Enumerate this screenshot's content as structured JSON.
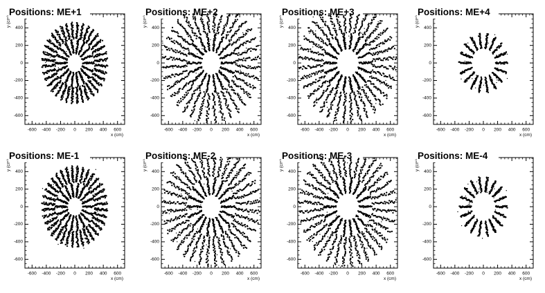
{
  "chart_data": [
    {
      "type": "scatter",
      "title": "Positions: ME+1",
      "xlabel": "x (cm)",
      "ylabel": "y (cm)",
      "xlim": [
        -700,
        700
      ],
      "ylim": [
        -700,
        560
      ],
      "xticks": [
        -600,
        -400,
        -200,
        0,
        200,
        400,
        600
      ],
      "yticks": [
        -600,
        -400,
        -200,
        0,
        200,
        400
      ],
      "pattern": {
        "rings": [
          {
            "r_min": 110,
            "r_max": 270,
            "spokes": 18
          },
          {
            "r_min": 280,
            "r_max": 460,
            "spokes": 36
          }
        ],
        "scatter": 25
      }
    },
    {
      "type": "scatter",
      "title": "Positions: ME+2",
      "xlabel": "x (cm)",
      "ylabel": "y (cm)",
      "xlim": [
        -700,
        700
      ],
      "ylim": [
        -700,
        560
      ],
      "xticks": [
        -600,
        -400,
        -200,
        0,
        200,
        400,
        600
      ],
      "yticks": [
        -600,
        -400,
        -200,
        0,
        200,
        400
      ],
      "pattern": {
        "rings": [
          {
            "r_min": 140,
            "r_max": 340,
            "spokes": 18
          },
          {
            "r_min": 350,
            "r_max": 680,
            "spokes": 36
          }
        ],
        "scatter": 45
      }
    },
    {
      "type": "scatter",
      "title": "Positions: ME+3",
      "xlabel": "x (cm)",
      "ylabel": "y (cm)",
      "xlim": [
        -700,
        700
      ],
      "ylim": [
        -700,
        560
      ],
      "xticks": [
        -600,
        -400,
        -200,
        0,
        200,
        400,
        600
      ],
      "yticks": [
        -600,
        -400,
        -200,
        0,
        200,
        400
      ],
      "pattern": {
        "rings": [
          {
            "r_min": 160,
            "r_max": 340,
            "spokes": 18
          },
          {
            "r_min": 350,
            "r_max": 680,
            "spokes": 36
          }
        ],
        "scatter": 35
      }
    },
    {
      "type": "scatter",
      "title": "Positions: ME+4",
      "xlabel": "x (cm)",
      "ylabel": "y (cm)",
      "xlim": [
        -700,
        700
      ],
      "ylim": [
        -700,
        560
      ],
      "xticks": [
        -600,
        -400,
        -200,
        0,
        200,
        400,
        600
      ],
      "yticks": [
        -600,
        -400,
        -200,
        0,
        200,
        400
      ],
      "pattern": {
        "rings": [
          {
            "r_min": 170,
            "r_max": 340,
            "spokes": 18
          }
        ],
        "scatter": 20
      }
    },
    {
      "type": "scatter",
      "title": "Positions: ME-1",
      "xlabel": "x (cm)",
      "ylabel": "y (cm)",
      "xlim": [
        -700,
        700
      ],
      "ylim": [
        -700,
        560
      ],
      "xticks": [
        -600,
        -400,
        -200,
        0,
        200,
        400,
        600
      ],
      "yticks": [
        -600,
        -400,
        -200,
        0,
        200,
        400
      ],
      "pattern": {
        "rings": [
          {
            "r_min": 110,
            "r_max": 270,
            "spokes": 18
          },
          {
            "r_min": 280,
            "r_max": 460,
            "spokes": 36
          }
        ],
        "scatter": 25
      }
    },
    {
      "type": "scatter",
      "title": "Positions: ME-2",
      "xlabel": "x (cm)",
      "ylabel": "y (cm)",
      "xlim": [
        -700,
        700
      ],
      "ylim": [
        -700,
        560
      ],
      "xticks": [
        -600,
        -400,
        -200,
        0,
        200,
        400,
        600
      ],
      "yticks": [
        -600,
        -400,
        -200,
        0,
        200,
        400
      ],
      "pattern": {
        "rings": [
          {
            "r_min": 140,
            "r_max": 340,
            "spokes": 18
          },
          {
            "r_min": 350,
            "r_max": 680,
            "spokes": 36
          }
        ],
        "scatter": 45
      }
    },
    {
      "type": "scatter",
      "title": "Positions: ME-3",
      "xlabel": "x (cm)",
      "ylabel": "y (cm)",
      "xlim": [
        -700,
        700
      ],
      "ylim": [
        -700,
        560
      ],
      "xticks": [
        -600,
        -400,
        -200,
        0,
        200,
        400,
        600
      ],
      "yticks": [
        -600,
        -400,
        -200,
        0,
        200,
        400
      ],
      "pattern": {
        "rings": [
          {
            "r_min": 160,
            "r_max": 340,
            "spokes": 18
          },
          {
            "r_min": 350,
            "r_max": 680,
            "spokes": 36
          }
        ],
        "scatter": 35
      }
    },
    {
      "type": "scatter",
      "title": "Positions: ME-4",
      "xlabel": "x (cm)",
      "ylabel": "y (cm)",
      "xlim": [
        -700,
        700
      ],
      "ylim": [
        -700,
        560
      ],
      "xticks": [
        -600,
        -400,
        -200,
        0,
        200,
        400,
        600
      ],
      "yticks": [
        -600,
        -400,
        -200,
        0,
        200,
        400
      ],
      "pattern": {
        "rings": [
          {
            "r_min": 170,
            "r_max": 340,
            "spokes": 18
          }
        ],
        "scatter": 20
      }
    }
  ]
}
